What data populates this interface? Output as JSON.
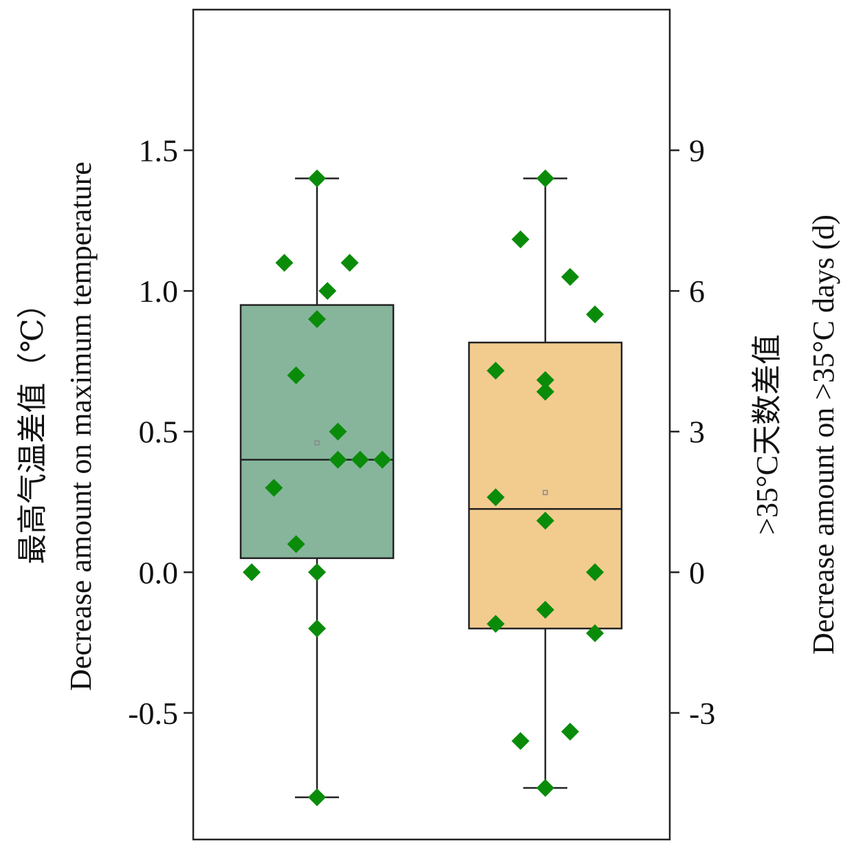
{
  "chart_data": {
    "type": "box",
    "left_axis": {
      "label_cn": "最高气温差值",
      "label_en": "Decrease amount on maximum temperature",
      "unit": "（℃）",
      "ticks": [
        "1.5",
        "1.0",
        "0.5",
        "0.0",
        "-0.5"
      ],
      "tick_values": [
        1.5,
        1.0,
        0.5,
        0.0,
        -0.5
      ],
      "range": [
        -0.95,
        2.0
      ]
    },
    "right_axis": {
      "label_cn": ">35°C天数差值",
      "label_en": "Decrease amount on >35°C days (d)",
      "ticks": [
        "9",
        "6",
        "3",
        "0",
        "-3"
      ],
      "tick_values": [
        9,
        6,
        3,
        0,
        -3
      ],
      "range": [
        -5.7,
        12.0
      ]
    },
    "series": [
      {
        "axis": "left",
        "box_color": "#86b59c",
        "point_color": "#0a8c0a",
        "whisker_low": -0.8,
        "q1": 0.05,
        "median": 0.4,
        "q3": 0.95,
        "whisker_high": 1.4,
        "mean": 0.46,
        "points": [
          {
            "dx": 0.0,
            "y": 1.4
          },
          {
            "dx": -0.25,
            "y": 1.1
          },
          {
            "dx": 0.25,
            "y": 1.1
          },
          {
            "dx": 0.08,
            "y": 1.0
          },
          {
            "dx": 0.0,
            "y": 0.9
          },
          {
            "dx": -0.16,
            "y": 0.7
          },
          {
            "dx": 0.16,
            "y": 0.5
          },
          {
            "dx": 0.16,
            "y": 0.4
          },
          {
            "dx": 0.33,
            "y": 0.4
          },
          {
            "dx": 0.5,
            "y": 0.4
          },
          {
            "dx": -0.33,
            "y": 0.3
          },
          {
            "dx": -0.16,
            "y": 0.1
          },
          {
            "dx": -0.5,
            "y": 0.0
          },
          {
            "dx": 0.0,
            "y": 0.0
          },
          {
            "dx": 0.0,
            "y": -0.2
          },
          {
            "dx": 0.0,
            "y": -0.8
          }
        ]
      },
      {
        "axis": "right",
        "box_color": "#f2cb8f",
        "point_color": "#0a8c0a",
        "whisker_low": -4.6,
        "q1": -1.2,
        "median": 1.35,
        "q3": 4.9,
        "whisker_high": 8.4,
        "mean": 1.7,
        "points": [
          {
            "dx": 0.0,
            "y": 8.4
          },
          {
            "dx": -0.19,
            "y": 7.1
          },
          {
            "dx": 0.19,
            "y": 6.3
          },
          {
            "dx": 0.38,
            "y": 5.5
          },
          {
            "dx": -0.38,
            "y": 4.3
          },
          {
            "dx": 0.0,
            "y": 4.1
          },
          {
            "dx": 0.0,
            "y": 3.85
          },
          {
            "dx": -0.38,
            "y": 1.6
          },
          {
            "dx": 0.0,
            "y": 1.1
          },
          {
            "dx": 0.38,
            "y": 0.0
          },
          {
            "dx": 0.0,
            "y": -0.8
          },
          {
            "dx": -0.38,
            "y": -1.1
          },
          {
            "dx": 0.38,
            "y": -1.3
          },
          {
            "dx": 0.19,
            "y": -3.4
          },
          {
            "dx": -0.19,
            "y": -3.6
          },
          {
            "dx": 0.0,
            "y": -4.6
          }
        ]
      }
    ]
  }
}
